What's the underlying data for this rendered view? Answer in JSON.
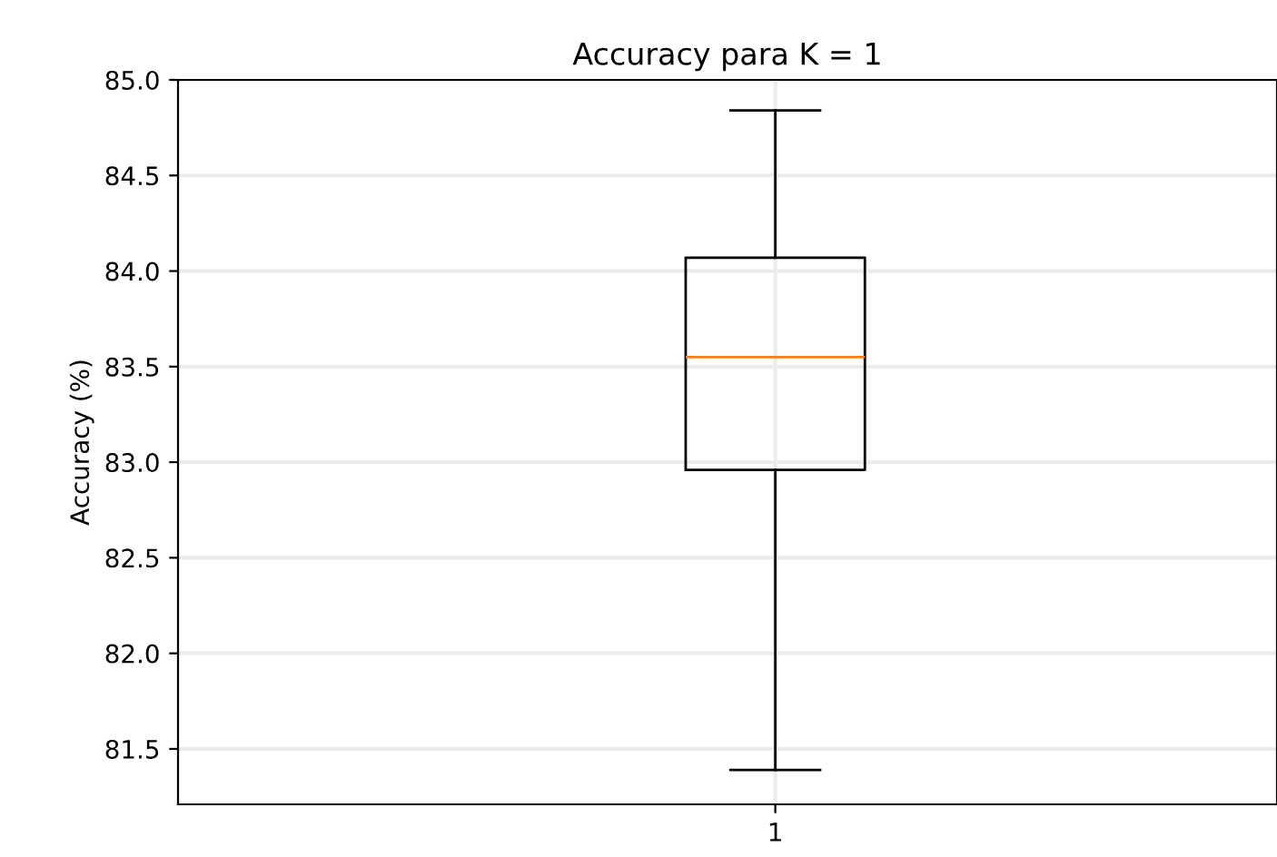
{
  "chart_data": {
    "type": "box",
    "title": "Accuracy para K = 1",
    "ylabel": "Accuracy (%)",
    "categories": [
      "1"
    ],
    "boxes": [
      {
        "low": 81.39,
        "q1": 82.96,
        "median": 83.55,
        "q3": 84.07,
        "high": 84.84
      }
    ],
    "ylim": [
      81.21,
      85.0
    ],
    "yticks": [
      {
        "value": 85.0,
        "label": "85.0"
      },
      {
        "value": 84.5,
        "label": "84.5"
      },
      {
        "value": 84.0,
        "label": "84.0"
      },
      {
        "value": 83.5,
        "label": "83.5"
      },
      {
        "value": 83.0,
        "label": "83.0"
      },
      {
        "value": 82.5,
        "label": "82.5"
      },
      {
        "value": 82.0,
        "label": "82.0"
      },
      {
        "value": 81.5,
        "label": "81.5"
      }
    ],
    "grid": true
  }
}
